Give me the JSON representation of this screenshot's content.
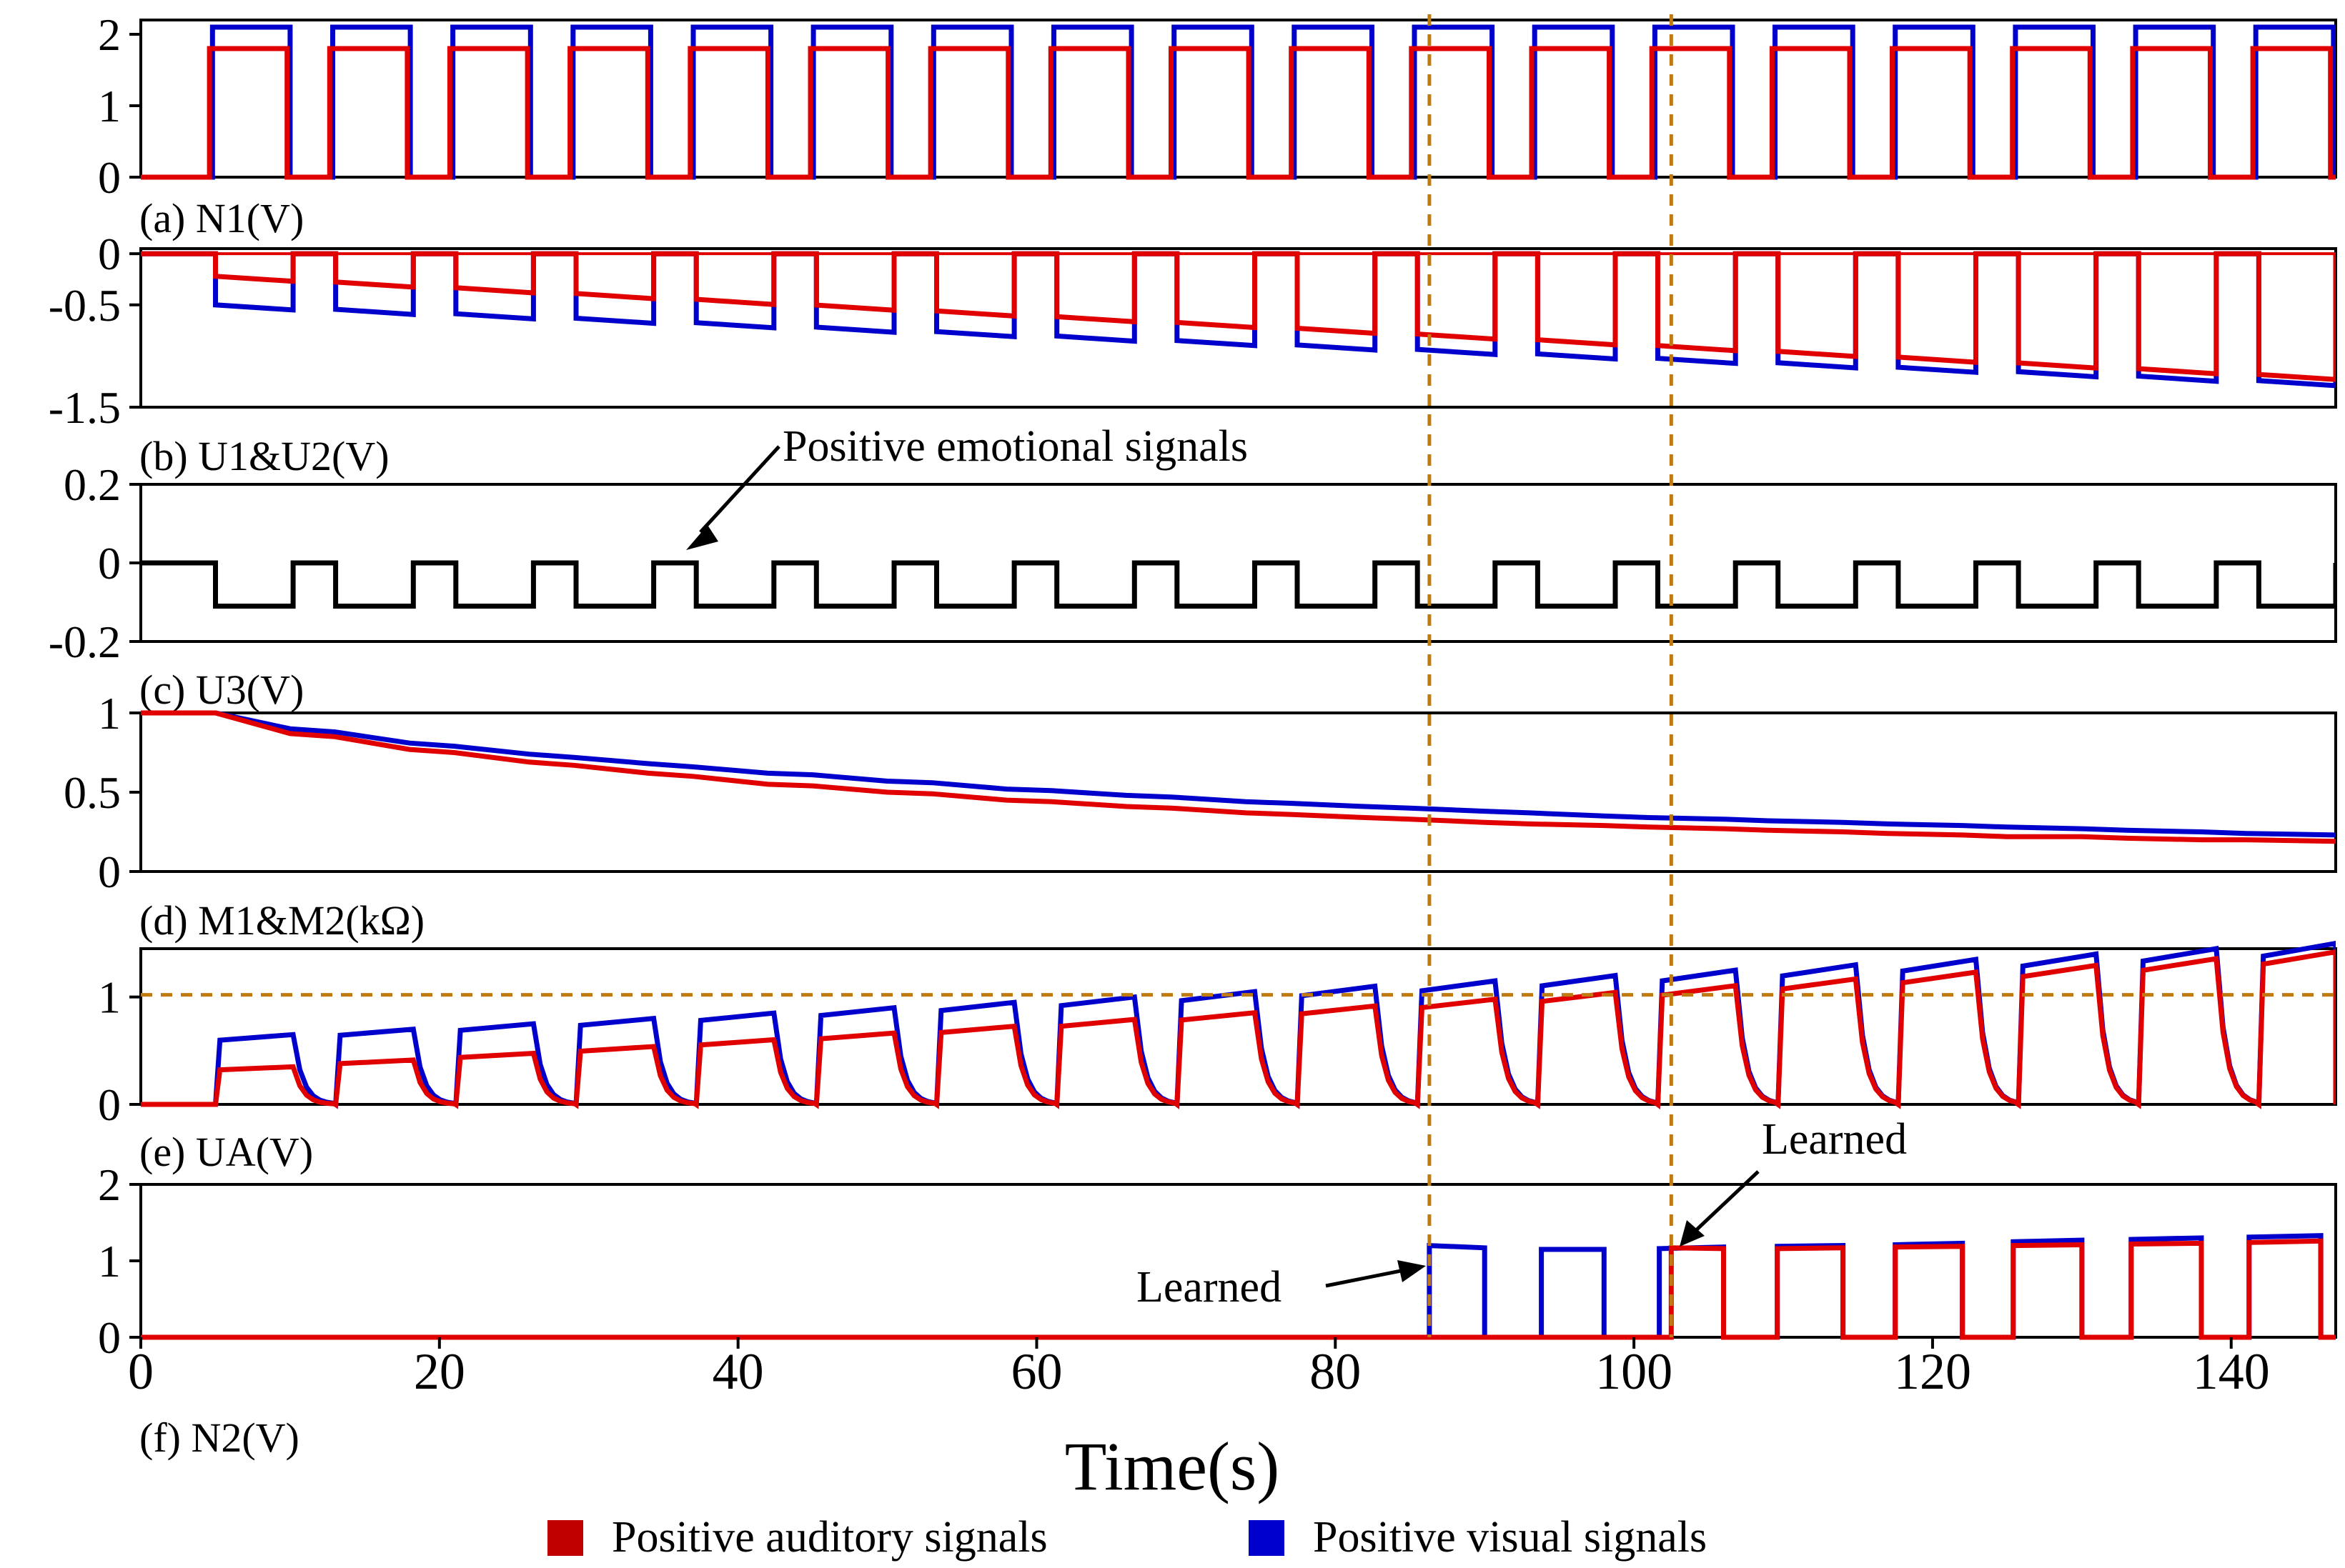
{
  "chart_data": [
    {
      "id": "a",
      "type": "line",
      "panel_label": "(a)  N1(V)",
      "yticks": [
        {
          "v": 0,
          "t": "0"
        },
        {
          "v": 1,
          "t": "1"
        },
        {
          "v": 2,
          "t": "2"
        }
      ],
      "ylim": [
        0,
        2.2
      ],
      "series": [
        {
          "name": "Positive visual signals",
          "color": "#0000cc",
          "high": 2.1,
          "low": 0,
          "first_rise": 4.8,
          "period": 8.05,
          "on_duration": 5.2,
          "rise_offset": 0.0,
          "end": 147
        },
        {
          "name": "Positive auditory signals",
          "color": "#e00000",
          "high": 1.8,
          "low": 0,
          "first_rise": 4.6,
          "period": 8.05,
          "on_duration": 5.2,
          "rise_offset": 0.0,
          "end": 147
        }
      ]
    },
    {
      "id": "b",
      "type": "line",
      "panel_label": "(b)  U1&U2(V)",
      "yticks": [
        {
          "v": 0,
          "t": "0"
        },
        {
          "v": -0.5,
          "t": "-0.5"
        },
        {
          "v": -1.5,
          "t": "-1.5"
        }
      ],
      "ylim": [
        -1.5,
        0.05
      ],
      "series": [
        {
          "name": "Positive visual signals",
          "color": "#0000cc",
          "first_step": 5.0,
          "period": 8.05,
          "on_duration": 5.2,
          "start_depth": -0.5,
          "end_depth": -1.24
        },
        {
          "name": "Positive auditory signals",
          "color": "#e00000",
          "first_step": 5.0,
          "period": 8.05,
          "on_duration": 5.2,
          "start_depth": -0.22,
          "end_depth": -1.18
        }
      ]
    },
    {
      "id": "c",
      "type": "line",
      "panel_label": "(c)  U3(V)",
      "annotation": "Positive emotional signals",
      "yticks": [
        {
          "v": 0.2,
          "t": "0.2"
        },
        {
          "v": 0,
          "t": "0"
        },
        {
          "v": -0.2,
          "t": "-0.2"
        }
      ],
      "ylim": [
        -0.2,
        0.2
      ],
      "series": [
        {
          "name": "Positive emotional signals",
          "color": "#000000",
          "high": 0,
          "low": -0.11,
          "first_fall": 5.0,
          "period": 8.05,
          "low_duration": 5.2,
          "end": 147
        }
      ]
    },
    {
      "id": "d",
      "type": "line",
      "panel_label": "(d)  M1&M2(kΩ)",
      "yticks": [
        {
          "v": 1,
          "t": "1"
        },
        {
          "v": 0.5,
          "t": "0.5"
        },
        {
          "v": 0,
          "t": "0"
        }
      ],
      "ylim": [
        0,
        1.0
      ],
      "series": [
        {
          "name": "Positive visual signals",
          "color": "#0000cc",
          "x": [
            0,
            5,
            10,
            13,
            18,
            21,
            26,
            29,
            34,
            37,
            42,
            45,
            50,
            53,
            58,
            61,
            66,
            69,
            74,
            77,
            82,
            85,
            90,
            93,
            98,
            101,
            106,
            109,
            114,
            117,
            122,
            125,
            130,
            133,
            138,
            141,
            147
          ],
          "y": [
            1,
            1,
            0.9,
            0.88,
            0.81,
            0.79,
            0.74,
            0.72,
            0.68,
            0.66,
            0.62,
            0.61,
            0.57,
            0.56,
            0.52,
            0.51,
            0.48,
            0.47,
            0.44,
            0.43,
            0.41,
            0.4,
            0.38,
            0.37,
            0.35,
            0.34,
            0.33,
            0.32,
            0.31,
            0.3,
            0.29,
            0.28,
            0.27,
            0.26,
            0.25,
            0.24,
            0.23
          ]
        },
        {
          "name": "Positive auditory signals",
          "color": "#e00000",
          "x": [
            0,
            5,
            10,
            13,
            18,
            21,
            26,
            29,
            34,
            37,
            42,
            45,
            50,
            53,
            58,
            61,
            66,
            69,
            74,
            77,
            82,
            85,
            90,
            93,
            98,
            101,
            106,
            109,
            114,
            117,
            122,
            125,
            130,
            133,
            138,
            141,
            147
          ],
          "y": [
            1,
            1,
            0.87,
            0.85,
            0.77,
            0.75,
            0.69,
            0.67,
            0.62,
            0.6,
            0.55,
            0.54,
            0.5,
            0.49,
            0.45,
            0.44,
            0.41,
            0.4,
            0.37,
            0.36,
            0.34,
            0.33,
            0.31,
            0.3,
            0.29,
            0.28,
            0.27,
            0.26,
            0.25,
            0.24,
            0.23,
            0.22,
            0.22,
            0.21,
            0.2,
            0.2,
            0.19
          ]
        }
      ]
    },
    {
      "id": "e",
      "type": "line",
      "panel_label": "(e)  UA(V)",
      "yticks": [
        {
          "v": 1,
          "t": "1"
        },
        {
          "v": 0,
          "t": "0"
        }
      ],
      "ylim": [
        0,
        1.45
      ],
      "threshold": 1.02,
      "series": [
        {
          "name": "Positive visual signals",
          "color": "#0000cc",
          "first_rise": 5.0,
          "period": 8.05,
          "on_duration": 5.2,
          "start_peak": 0.65,
          "end_peak": 1.5
        },
        {
          "name": "Positive auditory signals",
          "color": "#e00000",
          "first_rise": 5.0,
          "period": 8.05,
          "on_duration": 5.2,
          "start_peak": 0.35,
          "end_peak": 1.42
        }
      ]
    },
    {
      "id": "f",
      "type": "line",
      "panel_label": "(f)  N2(V)",
      "yticks": [
        {
          "v": 2,
          "t": "2"
        },
        {
          "v": 1,
          "t": "1"
        },
        {
          "v": 0,
          "t": "0"
        }
      ],
      "ylim": [
        0,
        2
      ],
      "annotations": [
        "Learned",
        "Learned"
      ],
      "series": [
        {
          "name": "Positive visual signals",
          "color": "#0000cc",
          "pulses": [
            [
              86.3,
              90,
              1.2,
              1.17
            ],
            [
              93.8,
              98,
              1.15,
              1.15
            ],
            [
              101.7,
              106,
              1.16,
              1.18
            ],
            [
              109.6,
              114,
              1.19,
              1.2
            ],
            [
              117.5,
              122,
              1.21,
              1.23
            ],
            [
              125.4,
              130,
              1.25,
              1.27
            ],
            [
              133.3,
              138,
              1.28,
              1.3
            ],
            [
              141.2,
              146,
              1.31,
              1.33
            ]
          ]
        },
        {
          "name": "Positive auditory signals",
          "color": "#e00000",
          "pulses": [
            [
              102.5,
              106,
              1.17,
              1.16
            ],
            [
              109.6,
              114,
              1.16,
              1.17
            ],
            [
              117.5,
              122,
              1.18,
              1.19
            ],
            [
              125.4,
              130,
              1.2,
              1.21
            ],
            [
              133.3,
              138,
              1.22,
              1.23
            ],
            [
              141.2,
              146,
              1.24,
              1.26
            ]
          ]
        }
      ]
    }
  ],
  "shared": {
    "xlim": [
      0,
      147
    ],
    "xticks": [
      0,
      20,
      40,
      60,
      80,
      100,
      120,
      140
    ],
    "xtick_labels": [
      "0",
      "20",
      "40",
      "60",
      "80",
      "100",
      "120",
      "140"
    ],
    "xlabel": "Time(s)",
    "vlines": [
      86.3,
      102.5
    ],
    "vline_color": "#c07a10"
  },
  "legend": {
    "items": [
      {
        "label": "Positive auditory signals",
        "color": "#c00000"
      },
      {
        "label": "Positive visual signals",
        "color": "#0000cc"
      }
    ]
  }
}
